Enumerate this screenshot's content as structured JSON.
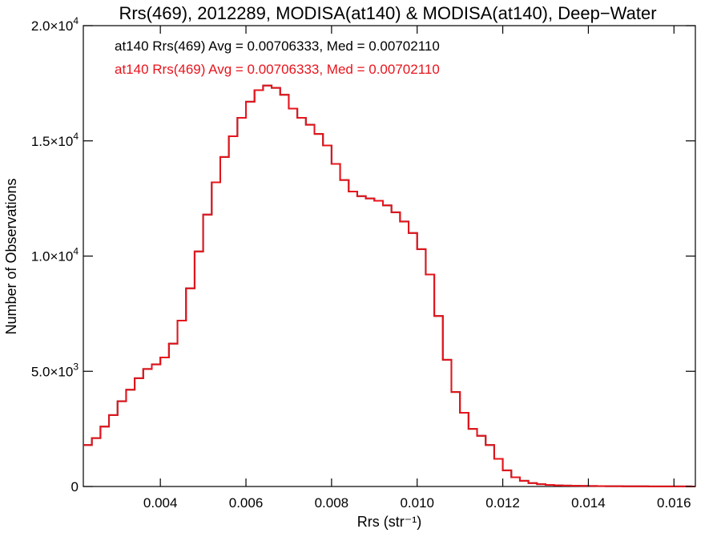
{
  "colors": {
    "series_black": "#000000",
    "series_red": "#e8141c",
    "axis": "#000000"
  },
  "chart_data": {
    "type": "line",
    "style": "step histogram",
    "title": "Rrs(469), 2012289, MODISA(at140) & MODISA(at140), Deep−Water",
    "xlabel": "Rrs (str⁻¹)",
    "ylabel": "Number of Observations",
    "xlim": [
      0.0022,
      0.0165
    ],
    "ylim": [
      0,
      20000
    ],
    "x_ticks": [
      {
        "value": 0.004,
        "label": "0.004"
      },
      {
        "value": 0.006,
        "label": "0.006"
      },
      {
        "value": 0.008,
        "label": "0.008"
      },
      {
        "value": 0.01,
        "label": "0.010"
      },
      {
        "value": 0.012,
        "label": "0.012"
      },
      {
        "value": 0.014,
        "label": "0.014"
      },
      {
        "value": 0.016,
        "label": "0.016"
      }
    ],
    "y_ticks": [
      {
        "value": 0,
        "mant": "0",
        "exp": ""
      },
      {
        "value": 5000,
        "mant": "5.0×10",
        "exp": "3"
      },
      {
        "value": 10000,
        "mant": "1.0×10",
        "exp": "4"
      },
      {
        "value": 15000,
        "mant": "1.5×10",
        "exp": "4"
      },
      {
        "value": 20000,
        "mant": "2.0×10",
        "exp": "4"
      }
    ],
    "grid": false,
    "annotations": [
      {
        "text": "at140 Rrs(469) Avg = 0.00706333, Med = 0.00702110",
        "color": "#000000"
      },
      {
        "text": "at140 Rrs(469) Avg = 0.00706333, Med = 0.00702110",
        "color": "#e8141c"
      }
    ],
    "x": [
      0.0022,
      0.0024,
      0.0026,
      0.0028,
      0.003,
      0.0032,
      0.0034,
      0.0036,
      0.0038,
      0.004,
      0.0042,
      0.0044,
      0.0046,
      0.0048,
      0.005,
      0.0052,
      0.0054,
      0.0056,
      0.0058,
      0.006,
      0.0062,
      0.0064,
      0.0066,
      0.0068,
      0.007,
      0.0072,
      0.0074,
      0.0076,
      0.0078,
      0.008,
      0.0082,
      0.0084,
      0.0086,
      0.0088,
      0.009,
      0.0092,
      0.0094,
      0.0096,
      0.0098,
      0.01,
      0.0102,
      0.0104,
      0.0106,
      0.0108,
      0.011,
      0.0112,
      0.0114,
      0.0116,
      0.0118,
      0.012,
      0.0122,
      0.0124,
      0.0126,
      0.0128,
      0.013,
      0.0132,
      0.0134,
      0.0136,
      0.0138,
      0.014,
      0.0142,
      0.0144,
      0.0146,
      0.0148,
      0.015,
      0.0152,
      0.0154,
      0.0156,
      0.0158,
      0.016,
      0.0162,
      0.0164
    ],
    "series": [
      {
        "color": "#000000",
        "values": [
          1800,
          2100,
          2600,
          3100,
          3700,
          4200,
          4700,
          5100,
          5300,
          5600,
          6200,
          7200,
          8600,
          10200,
          11800,
          13200,
          14300,
          15200,
          16000,
          16700,
          17200,
          17400,
          17300,
          17000,
          16400,
          16000,
          15700,
          15300,
          14800,
          14000,
          13300,
          12800,
          12600,
          12500,
          12400,
          12200,
          11900,
          11500,
          11000,
          10300,
          9200,
          7400,
          5500,
          4100,
          3200,
          2500,
          2200,
          1800,
          1200,
          700,
          400,
          250,
          150,
          100,
          70,
          50,
          40,
          30,
          25,
          20,
          18,
          15,
          12,
          10,
          8,
          7,
          6,
          5,
          4,
          3,
          3,
          2
        ]
      },
      {
        "color": "#e8141c",
        "values": [
          1800,
          2100,
          2600,
          3100,
          3700,
          4200,
          4700,
          5100,
          5300,
          5600,
          6200,
          7200,
          8600,
          10200,
          11800,
          13200,
          14300,
          15200,
          16000,
          16700,
          17200,
          17400,
          17300,
          17000,
          16400,
          16000,
          15700,
          15300,
          14800,
          14000,
          13300,
          12800,
          12600,
          12500,
          12400,
          12200,
          11900,
          11500,
          11000,
          10300,
          9200,
          7400,
          5500,
          4100,
          3200,
          2500,
          2200,
          1800,
          1200,
          700,
          400,
          250,
          150,
          100,
          70,
          50,
          40,
          30,
          25,
          20,
          18,
          15,
          12,
          10,
          8,
          7,
          6,
          5,
          4,
          3,
          3,
          2
        ]
      }
    ]
  }
}
